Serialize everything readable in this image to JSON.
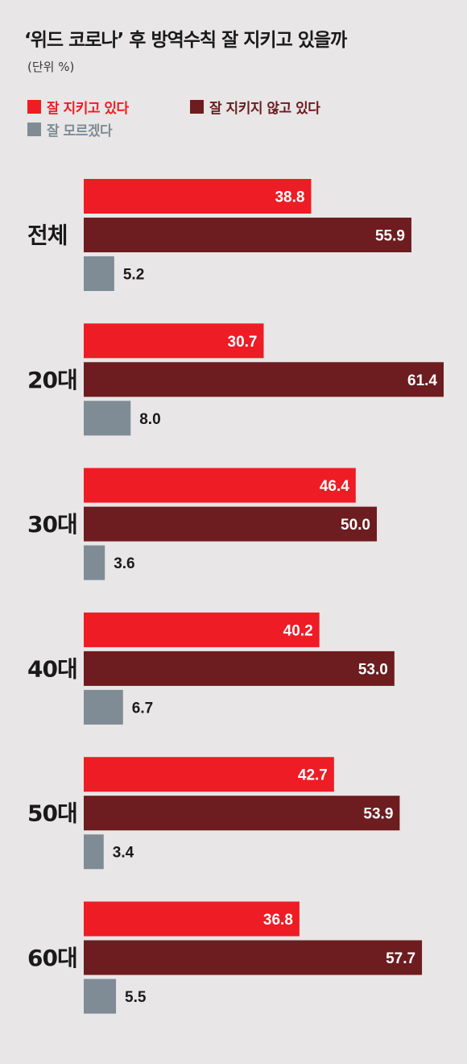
{
  "title": "‘위드 코로나’ 후 방역수칙 잘 지키고 있을까",
  "unit_label": "(단위 %)",
  "colors": {
    "background": "#e8e6e6",
    "series": [
      "#ee1c25",
      "#6d1c1f",
      "#7f8c95"
    ]
  },
  "chart_data": {
    "type": "bar",
    "orientation": "horizontal",
    "title": "‘위드 코로나’ 후 방역수칙 잘 지키고 있을까",
    "unit": "(단위 %)",
    "legend_position": "top-left",
    "grid": false,
    "categories": [
      "전체",
      "20대",
      "30대",
      "40대",
      "50대",
      "60대"
    ],
    "xlim": [
      0,
      61.4
    ],
    "series": [
      {
        "name": "잘 지키고 있다",
        "color": "#ee1c25",
        "values": [
          38.8,
          30.7,
          46.4,
          40.2,
          42.7,
          36.8
        ]
      },
      {
        "name": "잘 지키지 않고 있다",
        "color": "#6d1c1f",
        "values": [
          55.9,
          61.4,
          50.0,
          53.0,
          53.9,
          57.7
        ]
      },
      {
        "name": "잘 모르겠다",
        "color": "#7f8c95",
        "values": [
          5.2,
          8.0,
          3.6,
          6.7,
          3.4,
          5.5
        ]
      }
    ]
  }
}
